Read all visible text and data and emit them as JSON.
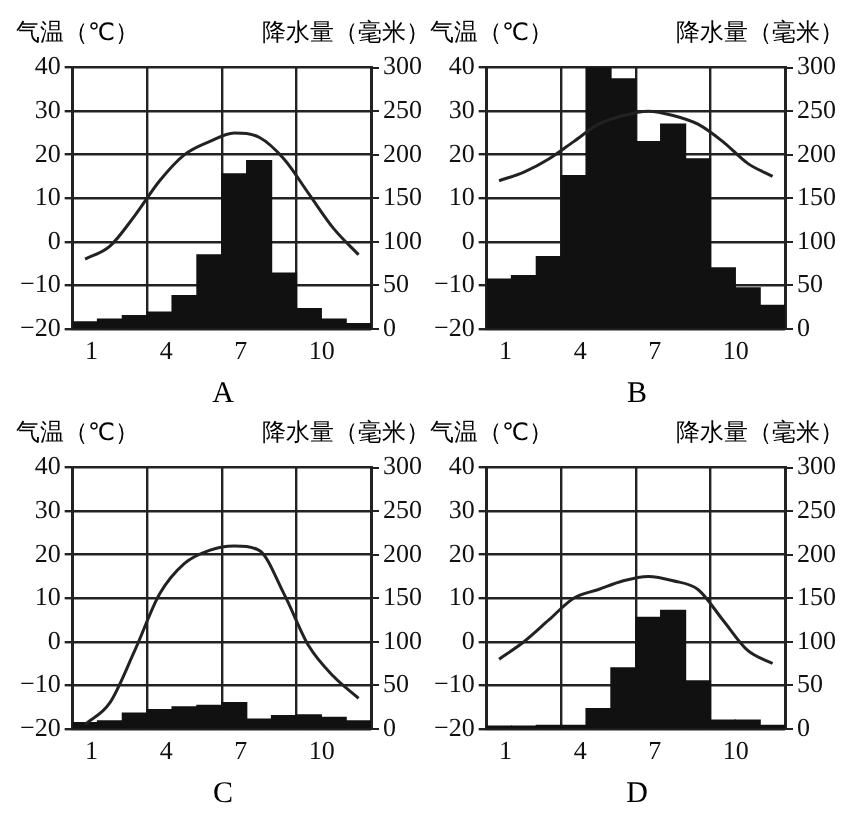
{
  "chart_data": [
    {
      "type": "bar",
      "xlabel": "A",
      "ylabel": "气温（℃）",
      "y2label": "降水量（毫米）",
      "categories": [
        "1",
        null,
        null,
        "4",
        null,
        null,
        "7",
        null,
        null,
        "10",
        null,
        null
      ],
      "ylim": [
        -20,
        40
      ],
      "yticks": [
        -20,
        -10,
        0,
        10,
        20,
        30,
        40
      ],
      "y2lim": [
        0,
        300
      ],
      "y2ticks": [
        0,
        50,
        100,
        150,
        200,
        250,
        300
      ],
      "grid": true,
      "marker": "none",
      "series": [
        {
          "axis": "y2",
          "color": "#111111",
          "values": [
            8,
            11,
            15,
            19,
            38,
            85,
            178,
            193,
            64,
            23,
            11,
            6
          ]
        },
        {
          "type": "line",
          "axis": "y",
          "color": "#222222",
          "values": [
            -4,
            -1,
            6,
            14,
            20,
            23,
            25,
            24,
            19,
            11,
            3,
            -3
          ]
        }
      ]
    },
    {
      "type": "bar",
      "xlabel": "B",
      "ylabel": "气温（℃）",
      "y2label": "降水量（毫米）",
      "categories": [
        "1",
        null,
        null,
        "4",
        null,
        null,
        "7",
        null,
        null,
        "10",
        null,
        null
      ],
      "ylim": [
        -20,
        40
      ],
      "yticks": [
        -20,
        -10,
        0,
        10,
        20,
        30,
        40
      ],
      "y2lim": [
        0,
        300
      ],
      "y2ticks": [
        0,
        50,
        100,
        150,
        200,
        250,
        300
      ],
      "grid": true,
      "marker": "none",
      "series": [
        {
          "axis": "y2",
          "color": "#111111",
          "values": [
            57,
            61,
            83,
            176,
            300,
            287,
            215,
            235,
            195,
            70,
            47,
            27
          ]
        },
        {
          "type": "line",
          "axis": "y",
          "color": "#222222",
          "values": [
            14,
            16,
            19,
            23,
            27,
            29,
            30,
            29,
            27,
            23,
            18,
            15
          ]
        }
      ]
    },
    {
      "type": "bar",
      "xlabel": "C",
      "ylabel": "气温（℃）",
      "y2label": "降水量（毫米）",
      "categories": [
        "1",
        null,
        null,
        "4",
        null,
        null,
        "7",
        null,
        null,
        "10",
        null,
        null
      ],
      "ylim": [
        -20,
        40
      ],
      "yticks": [
        -20,
        -10,
        0,
        10,
        20,
        30,
        40
      ],
      "y2lim": [
        0,
        300
      ],
      "y2ticks": [
        0,
        50,
        100,
        150,
        200,
        250,
        300
      ],
      "grid": true,
      "marker": "none",
      "series": [
        {
          "axis": "y2",
          "color": "#111111",
          "values": [
            7,
            9,
            18,
            22,
            25,
            27,
            30,
            11,
            15,
            16,
            13,
            9
          ]
        },
        {
          "type": "line",
          "axis": "y",
          "color": "#222222",
          "values": [
            -19,
            -14,
            -2,
            11,
            18,
            21,
            22,
            21,
            11,
            -1,
            -8,
            -13
          ]
        }
      ]
    },
    {
      "type": "bar",
      "xlabel": "D",
      "ylabel": "气温（℃）",
      "y2label": "降水量（毫米）",
      "categories": [
        "1",
        null,
        null,
        "4",
        null,
        null,
        "7",
        null,
        null,
        "10",
        null,
        null
      ],
      "ylim": [
        -20,
        40
      ],
      "yticks": [
        -20,
        -10,
        0,
        10,
        20,
        30,
        40
      ],
      "y2lim": [
        0,
        300
      ],
      "y2ticks": [
        0,
        50,
        100,
        150,
        200,
        250,
        300
      ],
      "grid": true,
      "marker": "none",
      "series": [
        {
          "axis": "y2",
          "color": "#111111",
          "values": [
            3,
            3,
            4,
            4,
            23,
            70,
            128,
            136,
            55,
            10,
            10,
            4
          ]
        },
        {
          "type": "line",
          "axis": "y",
          "color": "#222222",
          "values": [
            -4,
            0,
            5,
            10,
            12,
            14,
            15,
            14,
            12,
            5,
            -2,
            -5
          ]
        }
      ]
    }
  ]
}
